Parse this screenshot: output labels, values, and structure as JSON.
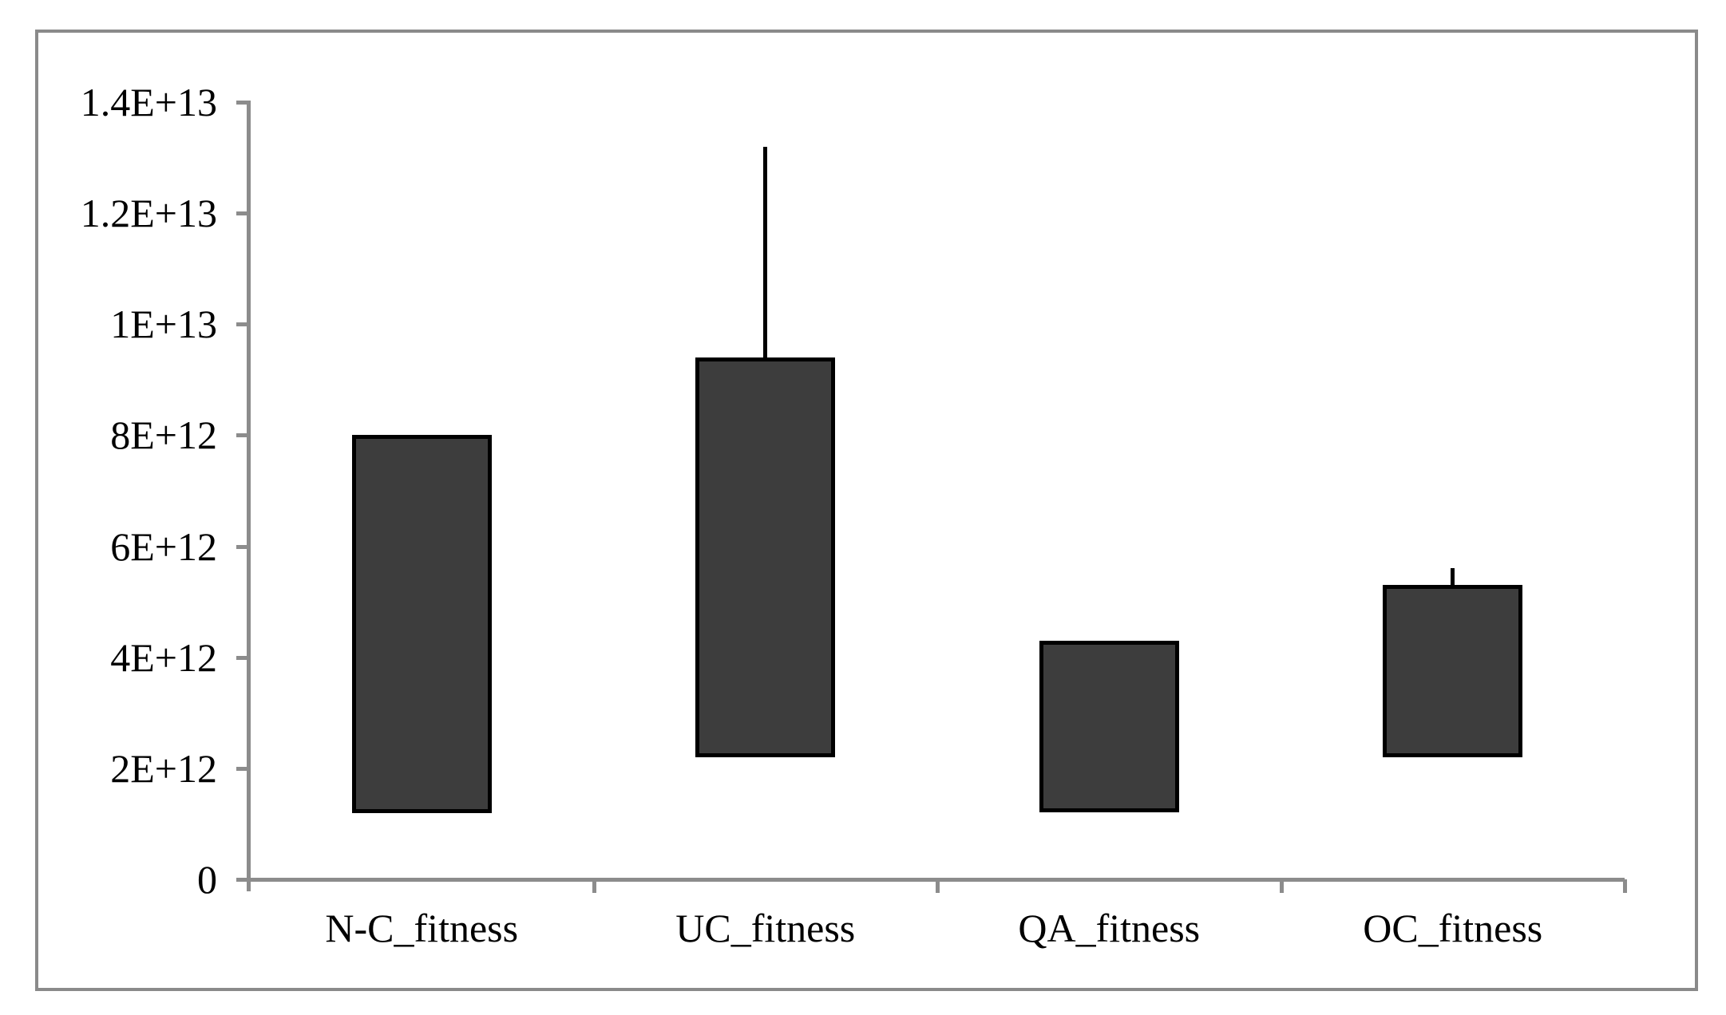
{
  "chart_data": {
    "type": "bar",
    "subtype": "floating_range_bars_with_error_whiskers",
    "title": "",
    "xlabel": "",
    "ylabel": "",
    "categories": [
      "N-C_fitness",
      "UC_fitness",
      "QA_fitness",
      "OC_fitness"
    ],
    "series": [
      {
        "name": "fitness_range",
        "bars": [
          {
            "category": "N-C_fitness",
            "low": 1200000000000.0,
            "high": 8000000000000.0,
            "error_high": null
          },
          {
            "category": "UC_fitness",
            "low": 2200000000000.0,
            "high": 9400000000000.0,
            "error_high": 13200000000000.0
          },
          {
            "category": "QA_fitness",
            "low": 1200000000000.0,
            "high": 4300000000000.0,
            "error_high": null
          },
          {
            "category": "OC_fitness",
            "low": 2200000000000.0,
            "high": 5300000000000.0,
            "error_high": 5600000000000.0
          }
        ]
      }
    ],
    "ylim": [
      0,
      14000000000000.0
    ],
    "yticks": [
      {
        "value": 0,
        "label": "0"
      },
      {
        "value": 2000000000000.0,
        "label": "2E+12"
      },
      {
        "value": 4000000000000.0,
        "label": "4E+12"
      },
      {
        "value": 6000000000000.0,
        "label": "6E+12"
      },
      {
        "value": 8000000000000.0,
        "label": "8E+12"
      },
      {
        "value": 10000000000000.0,
        "label": "1E+13"
      },
      {
        "value": 12000000000000.0,
        "label": "1.2E+13"
      },
      {
        "value": 14000000000000.0,
        "label": "1.4E+13"
      }
    ],
    "grid": false,
    "legend": false,
    "colors": {
      "bar_fill": "#3d3d3d",
      "bar_border": "#000000",
      "axis": "#8c8c8c",
      "figure_border": "#8a8a8a",
      "text": "#000000",
      "background": "#ffffff"
    }
  }
}
